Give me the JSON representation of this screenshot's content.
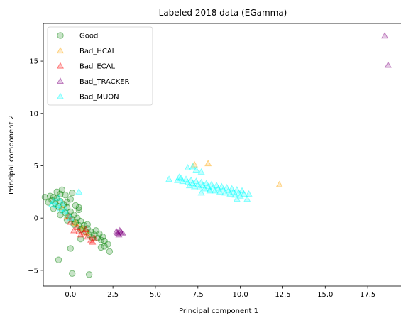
{
  "chart_data": {
    "type": "scatter",
    "title": "Labeled 2018 data (EGamma)",
    "xlabel": "Principal component 1",
    "ylabel": "Principal component 2",
    "xlim": [
      -1.6,
      19.5
    ],
    "ylim": [
      -6.5,
      18.6
    ],
    "xticks": [
      0.0,
      2.5,
      5.0,
      7.5,
      10.0,
      12.5,
      15.0,
      17.5
    ],
    "xtick_labels": [
      "0.0",
      "2.5",
      "5.0",
      "7.5",
      "10.0",
      "12.5",
      "15.0",
      "17.5"
    ],
    "yticks": [
      -5,
      0,
      5,
      10,
      15
    ],
    "ytick_labels": [
      "−5",
      "0",
      "5",
      "10",
      "15"
    ],
    "grid": false,
    "legend_position": "top-left",
    "series": [
      {
        "name": "Good",
        "marker": "circle",
        "color": "#008000",
        "points": [
          [
            -1.2,
            2.1
          ],
          [
            -1.0,
            2.0
          ],
          [
            -0.8,
            1.9
          ],
          [
            -0.6,
            1.6
          ],
          [
            -0.4,
            1.3
          ],
          [
            -0.2,
            1.0
          ],
          [
            0.0,
            0.6
          ],
          [
            0.2,
            0.3
          ],
          [
            0.4,
            0.0
          ],
          [
            0.6,
            -0.3
          ],
          [
            0.8,
            -0.7
          ],
          [
            1.0,
            -1.0
          ],
          [
            1.2,
            -1.3
          ],
          [
            1.4,
            -1.6
          ],
          [
            1.6,
            -1.9
          ],
          [
            1.8,
            -2.1
          ],
          [
            -1.1,
            1.7
          ],
          [
            -0.9,
            1.4
          ],
          [
            -0.7,
            1.1
          ],
          [
            -0.5,
            0.8
          ],
          [
            -0.3,
            0.5
          ],
          [
            -0.1,
            0.2
          ],
          [
            0.1,
            -0.1
          ],
          [
            0.3,
            -0.4
          ],
          [
            0.5,
            -0.7
          ],
          [
            0.7,
            -1.0
          ],
          [
            0.9,
            -1.3
          ],
          [
            1.1,
            -1.6
          ],
          [
            1.3,
            -1.9
          ],
          [
            -0.6,
            2.3
          ],
          [
            -0.3,
            2.2
          ],
          [
            0.0,
            1.8
          ],
          [
            0.3,
            1.2
          ],
          [
            0.5,
            0.8
          ],
          [
            -0.8,
            2.5
          ],
          [
            -0.5,
            2.7
          ],
          [
            -1.3,
            1.5
          ],
          [
            -1.0,
            0.9
          ],
          [
            -0.6,
            0.3
          ],
          [
            -0.2,
            -0.2
          ],
          [
            0.2,
            -0.6
          ],
          [
            0.6,
            -1.1
          ],
          [
            1.5,
            -1.2
          ],
          [
            1.7,
            -1.5
          ],
          [
            1.9,
            -1.8
          ],
          [
            2.0,
            -2.2
          ],
          [
            2.2,
            -2.5
          ],
          [
            2.3,
            -3.2
          ],
          [
            2.0,
            -2.7
          ],
          [
            0.1,
            2.4
          ],
          [
            0.5,
            1.0
          ],
          [
            1.0,
            -0.6
          ],
          [
            -1.5,
            2.0
          ],
          [
            -0.2,
            1.5
          ],
          [
            -0.7,
            -4.0
          ],
          [
            0.0,
            -2.9
          ],
          [
            0.1,
            -5.3
          ],
          [
            1.1,
            -5.4
          ],
          [
            0.6,
            -2.0
          ],
          [
            1.8,
            -2.8
          ]
        ]
      },
      {
        "name": "Bad_HCAL",
        "marker": "triangle",
        "color": "#ffa500",
        "points": [
          [
            7.3,
            5.1
          ],
          [
            8.1,
            5.2
          ],
          [
            12.3,
            3.2
          ],
          [
            -0.2,
            0.2
          ],
          [
            0.3,
            -0.5
          ],
          [
            0.7,
            -1.0
          ],
          [
            -0.5,
            1.0
          ],
          [
            1.0,
            -1.5
          ]
        ]
      },
      {
        "name": "Bad_ECAL",
        "marker": "triangle",
        "color": "#ff0000",
        "points": [
          [
            0.0,
            -0.4
          ],
          [
            0.4,
            -0.9
          ],
          [
            0.8,
            -1.4
          ],
          [
            1.0,
            -1.8
          ],
          [
            1.2,
            -2.1
          ],
          [
            0.6,
            -1.6
          ],
          [
            -0.1,
            0.1
          ],
          [
            0.2,
            -1.2
          ],
          [
            1.4,
            -1.9
          ],
          [
            0.9,
            -1.1
          ],
          [
            1.3,
            -2.3
          ],
          [
            0.5,
            -1.3
          ]
        ]
      },
      {
        "name": "Bad_TRACKER",
        "marker": "triangle",
        "color": "#800080",
        "points": [
          [
            2.7,
            -1.3
          ],
          [
            2.8,
            -1.5
          ],
          [
            2.9,
            -1.2
          ],
          [
            3.0,
            -1.4
          ],
          [
            2.85,
            -1.6
          ],
          [
            3.1,
            -1.5
          ],
          [
            2.75,
            -1.4
          ],
          [
            2.95,
            -1.3
          ],
          [
            18.5,
            17.4
          ],
          [
            18.7,
            14.6
          ]
        ]
      },
      {
        "name": "Bad_MUON",
        "marker": "triangle",
        "color": "#00ffff",
        "points": [
          [
            -1.0,
            1.6
          ],
          [
            -0.8,
            1.2
          ],
          [
            -0.6,
            0.9
          ],
          [
            -0.4,
            0.6
          ],
          [
            -0.2,
            0.3
          ],
          [
            0.0,
            0.0
          ],
          [
            -0.7,
            1.9
          ],
          [
            -0.5,
            1.4
          ],
          [
            0.5,
            2.5
          ],
          [
            -1.1,
            1.3
          ],
          [
            -0.3,
            0.8
          ],
          [
            6.3,
            3.6
          ],
          [
            6.6,
            3.5
          ],
          [
            6.9,
            3.4
          ],
          [
            7.2,
            3.3
          ],
          [
            7.5,
            3.2
          ],
          [
            7.8,
            3.1
          ],
          [
            8.1,
            3.0
          ],
          [
            8.4,
            2.9
          ],
          [
            8.7,
            2.8
          ],
          [
            9.0,
            2.7
          ],
          [
            9.3,
            2.6
          ],
          [
            9.6,
            2.5
          ],
          [
            9.9,
            2.4
          ],
          [
            10.2,
            2.3
          ],
          [
            6.5,
            3.8
          ],
          [
            6.8,
            3.7
          ],
          [
            7.1,
            3.6
          ],
          [
            7.4,
            3.5
          ],
          [
            7.7,
            3.4
          ],
          [
            8.0,
            3.3
          ],
          [
            8.3,
            3.2
          ],
          [
            8.6,
            3.1
          ],
          [
            8.9,
            3.0
          ],
          [
            9.2,
            2.9
          ],
          [
            9.5,
            2.8
          ],
          [
            9.8,
            2.7
          ],
          [
            10.1,
            2.6
          ],
          [
            7.0,
            3.1
          ],
          [
            7.3,
            3.0
          ],
          [
            7.6,
            2.9
          ],
          [
            7.9,
            2.8
          ],
          [
            8.2,
            2.7
          ],
          [
            8.5,
            2.6
          ],
          [
            8.8,
            2.5
          ],
          [
            9.1,
            2.4
          ],
          [
            9.4,
            2.3
          ],
          [
            9.7,
            2.2
          ],
          [
            10.0,
            2.1
          ],
          [
            6.9,
            4.8
          ],
          [
            7.2,
            4.9
          ],
          [
            7.4,
            4.6
          ],
          [
            7.7,
            4.4
          ],
          [
            5.8,
            3.7
          ],
          [
            7.7,
            2.4
          ],
          [
            9.8,
            1.8
          ],
          [
            10.4,
            1.8
          ],
          [
            10.5,
            2.3
          ],
          [
            8.2,
            2.6
          ],
          [
            6.4,
            3.9
          ]
        ]
      }
    ]
  }
}
